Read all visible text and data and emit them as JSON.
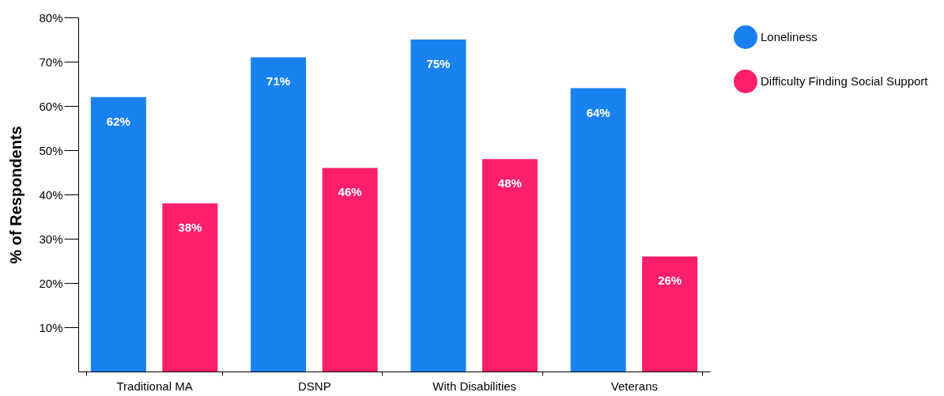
{
  "chart_data": {
    "type": "bar",
    "ylabel": "% of Respondents",
    "categories": [
      "Traditional MA",
      "DSNP",
      "With Disabilities",
      "Veterans"
    ],
    "series": [
      {
        "name": "Loneliness",
        "color": "#1a82f0",
        "values": [
          62,
          71,
          75,
          64
        ],
        "value_labels": [
          "62%",
          "71%",
          "75%",
          "64%"
        ]
      },
      {
        "name": "Difficulty Finding Social Support",
        "color": "#ff1f68",
        "values": [
          38,
          46,
          48,
          26
        ],
        "value_labels": [
          "38%",
          "46%",
          "48%",
          "26%"
        ]
      }
    ],
    "ylim": [
      0,
      80
    ],
    "yticks": [
      {
        "value": 10,
        "label": "10%"
      },
      {
        "value": 20,
        "label": "20%"
      },
      {
        "value": 30,
        "label": "30%"
      },
      {
        "value": 40,
        "label": "40%"
      },
      {
        "value": 50,
        "label": "50%"
      },
      {
        "value": 60,
        "label": "60%"
      },
      {
        "value": 70,
        "label": "70%"
      },
      {
        "value": 80,
        "label": "80%"
      }
    ],
    "grid": false,
    "legend": "right"
  }
}
